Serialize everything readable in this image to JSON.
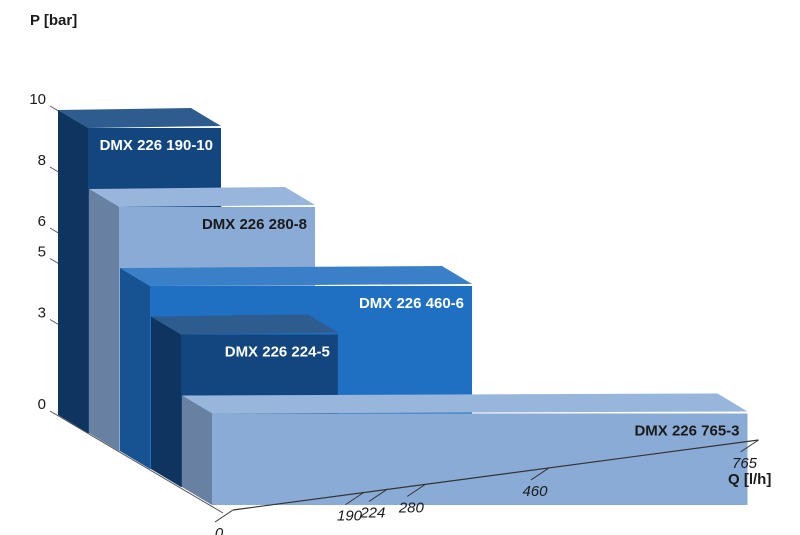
{
  "chart_data": {
    "type": "bar",
    "title": "",
    "xlabel": "Q [l/h]",
    "ylabel": "P [bar]",
    "ylim": [
      0,
      10
    ],
    "xlim": [
      0,
      765
    ],
    "y_ticks": [
      "0",
      "3",
      "5",
      "6",
      "8",
      "10"
    ],
    "x_ticks": [
      "0",
      "190",
      "224",
      "280",
      "460",
      "765"
    ],
    "series": [
      {
        "name": "DMX 226 190-10",
        "q": 190,
        "p": 10,
        "color": "#13467f"
      },
      {
        "name": "DMX 226 280-8",
        "q": 280,
        "p": 8,
        "color": "#8aabd6"
      },
      {
        "name": "DMX 226 460-6",
        "q": 460,
        "p": 6,
        "color": "#1f6fc2"
      },
      {
        "name": "DMX 226 224-5",
        "q": 224,
        "p": 5,
        "color": "#13467f"
      },
      {
        "name": "DMX 226 765-3",
        "q": 765,
        "p": 3,
        "color": "#8aabd6"
      }
    ]
  }
}
